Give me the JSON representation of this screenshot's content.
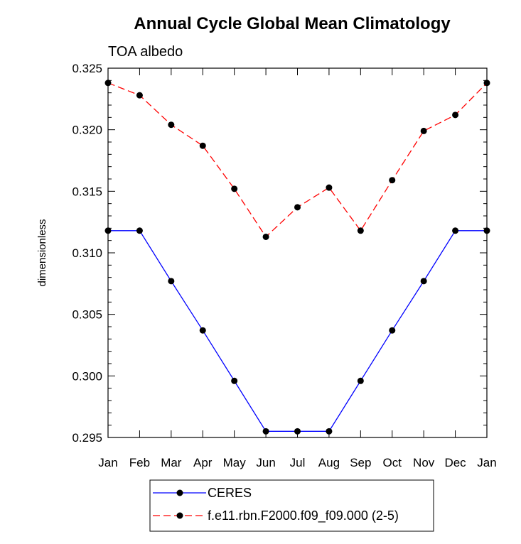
{
  "chart_data": {
    "type": "line",
    "title": "Annual Cycle Global Mean Climatology",
    "subtitle": "TOA albedo",
    "xlabel": "",
    "ylabel": "dimensionless",
    "categories": [
      "Jan",
      "Feb",
      "Mar",
      "Apr",
      "May",
      "Jun",
      "Jul",
      "Aug",
      "Sep",
      "Oct",
      "Nov",
      "Dec",
      "Jan"
    ],
    "ylim": [
      0.295,
      0.325
    ],
    "yticks": [
      "0.295",
      "0.300",
      "0.305",
      "0.310",
      "0.315",
      "0.320",
      "0.325"
    ],
    "grid": false,
    "legend_position": "bottom",
    "series": [
      {
        "name": "CERES",
        "color": "#0000ff",
        "dash": "solid",
        "marker": "circle",
        "values": [
          0.3118,
          0.3118,
          0.3077,
          0.3037,
          0.2996,
          0.2955,
          0.2955,
          0.2955,
          0.2996,
          0.3037,
          0.3077,
          0.3118,
          0.3118
        ]
      },
      {
        "name": "f.e11.rbn.F2000.f09_f09.000 (2-5)",
        "color": "#ff0000",
        "dash": "dashed",
        "marker": "circle",
        "values": [
          0.3238,
          0.3228,
          0.3204,
          0.3187,
          0.3152,
          0.3113,
          0.3137,
          0.3153,
          0.3118,
          0.3159,
          0.3199,
          0.3212,
          0.3238
        ]
      }
    ]
  }
}
